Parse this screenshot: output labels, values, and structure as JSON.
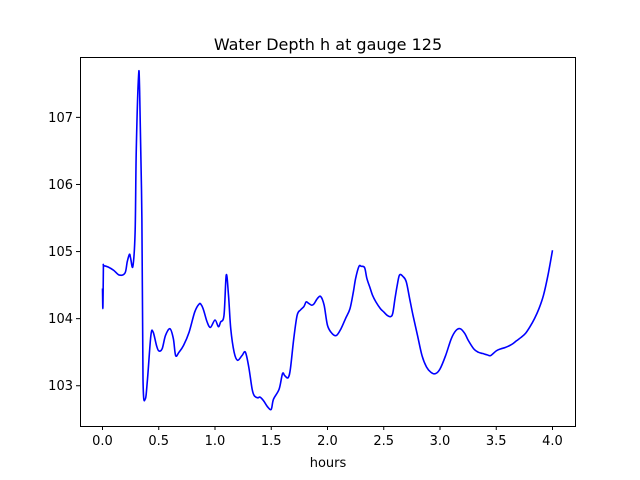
{
  "chart_data": {
    "type": "line",
    "title": "Water Depth h at gauge 125",
    "xlabel": "hours",
    "ylabel": "",
    "xlim": [
      -0.2,
      4.2
    ],
    "ylim": [
      102.4,
      107.9
    ],
    "xticks": [
      0.0,
      0.5,
      1.0,
      1.5,
      2.0,
      2.5,
      3.0,
      3.5,
      4.0
    ],
    "xtick_labels": [
      "0.0",
      "0.5",
      "1.0",
      "1.5",
      "2.0",
      "2.5",
      "3.0",
      "3.5",
      "4.0"
    ],
    "yticks": [
      103,
      104,
      105,
      106,
      107
    ],
    "ytick_labels": [
      "103",
      "104",
      "105",
      "106",
      "107"
    ],
    "grid": false,
    "series": [
      {
        "color": "#0000ff",
        "x": [
          0.0,
          0.003,
          0.006,
          0.008,
          0.01,
          0.05,
          0.1,
          0.15,
          0.2,
          0.22,
          0.24,
          0.25,
          0.27,
          0.29,
          0.3,
          0.32,
          0.33,
          0.35,
          0.36,
          0.38,
          0.4,
          0.43,
          0.45,
          0.48,
          0.5,
          0.53,
          0.56,
          0.6,
          0.63,
          0.65,
          0.68,
          0.72,
          0.77,
          0.82,
          0.86,
          0.88,
          0.9,
          0.93,
          0.96,
          1.0,
          1.03,
          1.05,
          1.08,
          1.1,
          1.12,
          1.14,
          1.17,
          1.2,
          1.24,
          1.27,
          1.3,
          1.33,
          1.35,
          1.38,
          1.4,
          1.43,
          1.47,
          1.5,
          1.52,
          1.57,
          1.6,
          1.62,
          1.65,
          1.67,
          1.7,
          1.73,
          1.76,
          1.79,
          1.81,
          1.83,
          1.86,
          1.88,
          1.91,
          1.94,
          1.97,
          2.0,
          2.04,
          2.08,
          2.12,
          2.16,
          2.2,
          2.23,
          2.25,
          2.28,
          2.3,
          2.33,
          2.35,
          2.38,
          2.4,
          2.43,
          2.47,
          2.5,
          2.53,
          2.56,
          2.58,
          2.6,
          2.62,
          2.64,
          2.67,
          2.7,
          2.73,
          2.76,
          2.8,
          2.84,
          2.88,
          2.92,
          2.96,
          3.0,
          3.05,
          3.1,
          3.14,
          3.18,
          3.22,
          3.25,
          3.3,
          3.34,
          3.38,
          3.42,
          3.45,
          3.5,
          3.54,
          3.58,
          3.62,
          3.65,
          3.68,
          3.72,
          3.76,
          3.8,
          3.84,
          3.88,
          3.92,
          3.96,
          4.0
        ],
        "y": [
          104.45,
          104.15,
          104.45,
          104.78,
          104.79,
          104.77,
          104.72,
          104.65,
          104.68,
          104.85,
          104.96,
          104.9,
          104.78,
          105.3,
          106.5,
          107.6,
          107.4,
          105.5,
          103.1,
          102.8,
          103.1,
          103.75,
          103.8,
          103.6,
          103.52,
          103.55,
          103.75,
          103.85,
          103.7,
          103.45,
          103.5,
          103.6,
          103.8,
          104.1,
          104.22,
          104.2,
          104.12,
          103.95,
          103.87,
          103.98,
          103.88,
          103.95,
          104.05,
          104.65,
          104.35,
          103.85,
          103.5,
          103.38,
          103.45,
          103.5,
          103.28,
          102.95,
          102.85,
          102.82,
          102.83,
          102.78,
          102.68,
          102.65,
          102.8,
          102.95,
          103.18,
          103.15,
          103.12,
          103.25,
          103.7,
          104.05,
          104.13,
          104.18,
          104.25,
          104.23,
          104.2,
          104.22,
          104.3,
          104.33,
          104.2,
          103.9,
          103.78,
          103.75,
          103.85,
          104.0,
          104.15,
          104.4,
          104.6,
          104.78,
          104.78,
          104.76,
          104.6,
          104.45,
          104.35,
          104.25,
          104.15,
          104.1,
          104.05,
          104.03,
          104.08,
          104.3,
          104.5,
          104.65,
          104.63,
          104.55,
          104.3,
          104.05,
          103.75,
          103.45,
          103.28,
          103.2,
          103.18,
          103.25,
          103.45,
          103.7,
          103.82,
          103.85,
          103.78,
          103.68,
          103.55,
          103.5,
          103.48,
          103.46,
          103.45,
          103.52,
          103.55,
          103.57,
          103.6,
          103.63,
          103.67,
          103.72,
          103.78,
          103.88,
          104.0,
          104.15,
          104.35,
          104.65,
          105.02
        ]
      }
    ]
  }
}
